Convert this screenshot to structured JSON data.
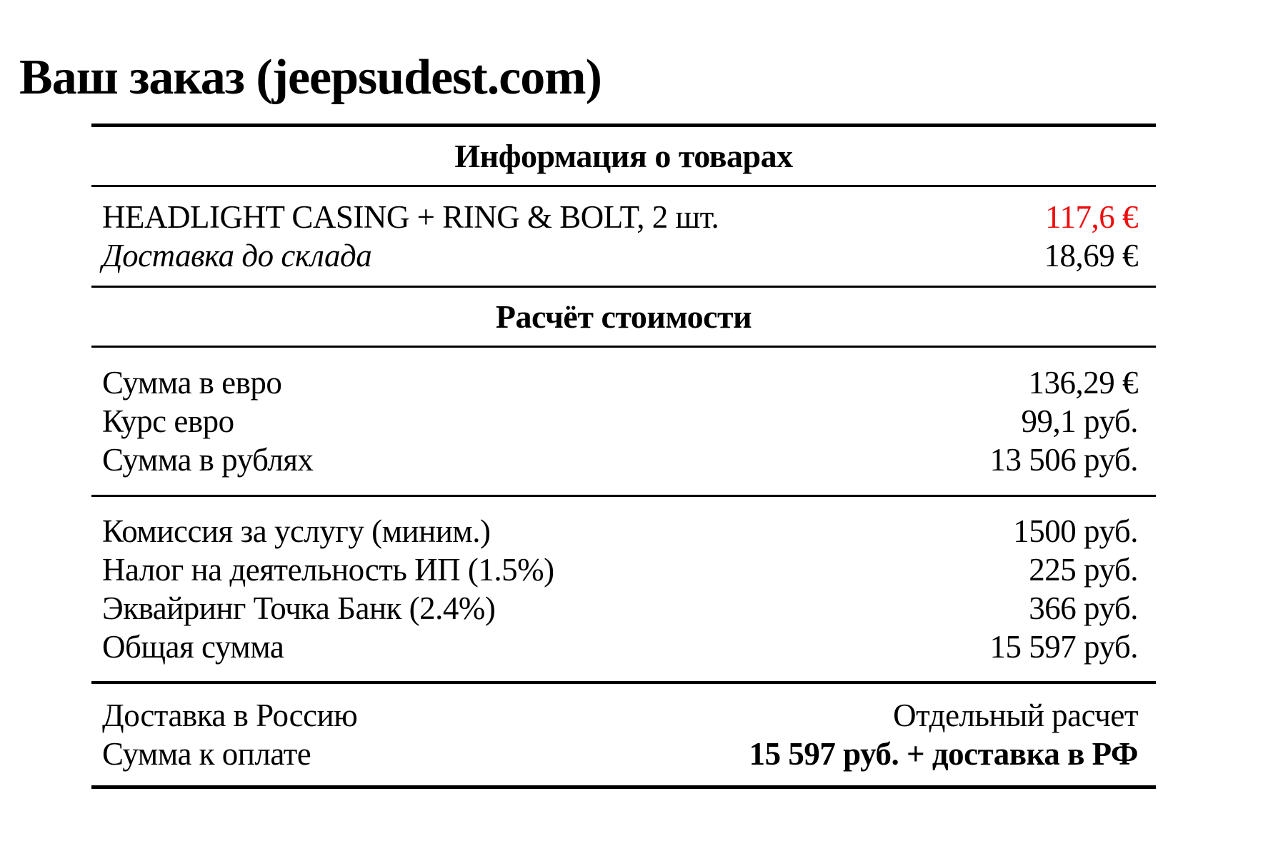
{
  "title": "Ваш заказ (jeepsudest.com)",
  "colors": {
    "price_red": "#ee0d0d"
  },
  "table": {
    "items": {
      "header": "Информация о товарах",
      "rows": [
        {
          "label": "HEADLIGHT CASING + RING & BOLT, 2 шт.",
          "value": "117,6 €"
        },
        {
          "label": "Доставка до склада",
          "value": "18,69 €"
        }
      ]
    },
    "calc": {
      "header": "Расчёт стоимости",
      "group1": {
        "rows": [
          {
            "label": "Сумма в евро",
            "value": "136,29 €"
          },
          {
            "label": "Курс евро",
            "value": "99,1 руб."
          },
          {
            "label": "Сумма в рублях",
            "value": "13 506 руб."
          }
        ]
      },
      "group2": {
        "rows": [
          {
            "label": "Комиссия за услугу (миним.)",
            "value": "1500 руб."
          },
          {
            "label": "Налог на деятельность ИП (1.5%)",
            "value": "225 руб."
          },
          {
            "label": "Эквайринг Точка Банк (2.4%)",
            "value": "366 руб."
          },
          {
            "label": "Общая сумма",
            "value": "15 597 руб."
          }
        ]
      },
      "group3": {
        "rows": [
          {
            "label": "Доставка в Россию",
            "value": "Отдельный расчет"
          },
          {
            "label": "Сумма к оплате",
            "value": "15 597 руб. + доставка в РФ"
          }
        ]
      }
    }
  }
}
